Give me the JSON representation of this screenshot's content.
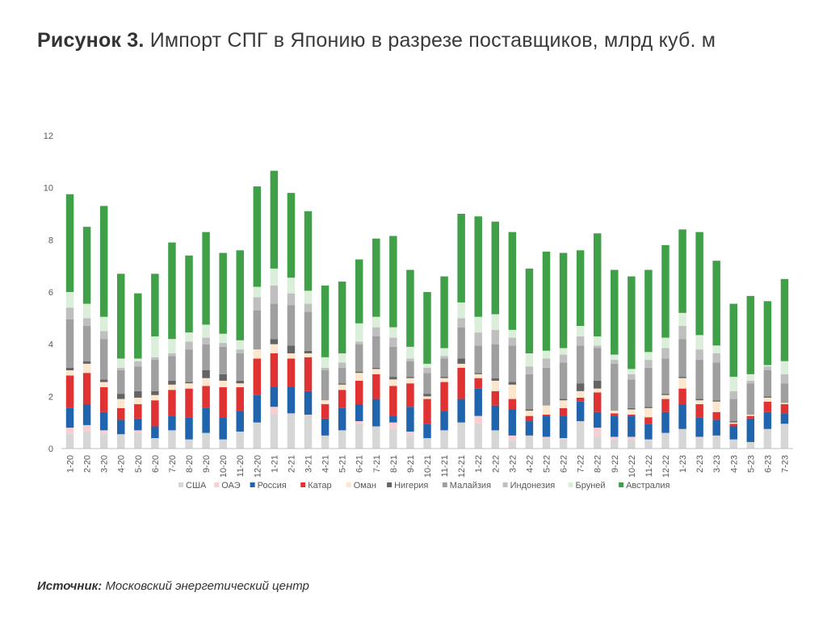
{
  "figure": {
    "label": "Рисунок 3.",
    "title": "Импорт СПГ в Японию в разрезе поставщиков, млрд куб. м"
  },
  "source": {
    "label": "Источник:",
    "text": "Московский энергетический центр"
  },
  "chart_data": {
    "type": "bar",
    "stacked": true,
    "title": "Импорт СПГ в Японию в разрезе поставщиков, млрд куб. м",
    "ylim": [
      0,
      12
    ],
    "yticks": [
      0,
      2,
      4,
      6,
      8,
      10,
      12
    ],
    "grid": false,
    "legend_position": "bottom",
    "categories": [
      "1-20",
      "2-20",
      "3-20",
      "4-20",
      "5-20",
      "6-20",
      "7-20",
      "8-20",
      "9-20",
      "10-20",
      "11-20",
      "12-20",
      "1-21",
      "2-21",
      "3-21",
      "4-21",
      "5-21",
      "6-21",
      "7-21",
      "8-21",
      "9-21",
      "10-21",
      "11-21",
      "12-21",
      "1-22",
      "2-22",
      "3-22",
      "4-22",
      "5-22",
      "6-22",
      "7-22",
      "8-22",
      "9-22",
      "10-22",
      "11-22",
      "12-22",
      "1-23",
      "2-23",
      "3-23",
      "4-23",
      "5-23",
      "6-23",
      "7-23"
    ],
    "series": [
      {
        "name": "США",
        "color": "#d6d6d6",
        "values": [
          0.55,
          0.65,
          0.55,
          0.55,
          0.6,
          0.4,
          0.7,
          0.35,
          0.6,
          0.35,
          0.65,
          1.0,
          1.3,
          1.35,
          1.3,
          0.5,
          0.7,
          0.95,
          0.85,
          0.75,
          0.5,
          0.4,
          0.7,
          1.0,
          0.95,
          0.7,
          0.3,
          0.5,
          0.4,
          0.35,
          1.05,
          0.45,
          0.35,
          0.35,
          0.3,
          0.6,
          0.75,
          0.4,
          0.5,
          0.35,
          0.25,
          0.75,
          0.95
        ]
      },
      {
        "name": "ОАЭ",
        "color": "#f5cfd3",
        "values": [
          0.25,
          0.25,
          0.15,
          0.0,
          0.1,
          0.0,
          0.0,
          0.0,
          0.0,
          0.0,
          0.0,
          0.0,
          0.3,
          0.0,
          0.0,
          0.0,
          0.0,
          0.1,
          0.0,
          0.25,
          0.15,
          0.0,
          0.0,
          0.0,
          0.3,
          0.0,
          0.2,
          0.0,
          0.05,
          0.05,
          0.0,
          0.35,
          0.1,
          0.1,
          0.05,
          0.0,
          0.0,
          0.05,
          0.0,
          0.0,
          0.0,
          0.0,
          0.0
        ]
      },
      {
        "name": "Россия",
        "color": "#1f64ad",
        "values": [
          0.75,
          0.8,
          0.7,
          0.55,
          0.45,
          0.45,
          0.55,
          0.85,
          0.95,
          0.85,
          0.8,
          1.05,
          0.75,
          1.0,
          0.9,
          0.65,
          0.85,
          0.65,
          1.05,
          0.25,
          0.95,
          0.55,
          0.75,
          0.9,
          1.05,
          0.95,
          1.0,
          0.55,
          0.8,
          0.85,
          0.75,
          0.6,
          0.8,
          0.8,
          0.6,
          0.8,
          0.95,
          0.75,
          0.6,
          0.5,
          0.9,
          0.65,
          0.4
        ]
      },
      {
        "name": "Катар",
        "color": "#e03232",
        "values": [
          1.25,
          1.2,
          0.95,
          0.45,
          0.55,
          1.0,
          1.0,
          1.1,
          0.85,
          1.15,
          0.9,
          1.4,
          1.3,
          1.1,
          1.3,
          0.55,
          0.7,
          0.9,
          0.95,
          1.15,
          0.9,
          0.95,
          1.1,
          1.2,
          0.4,
          0.55,
          0.4,
          0.2,
          0.05,
          0.3,
          0.15,
          0.75,
          0.1,
          0.05,
          0.25,
          0.5,
          0.6,
          0.5,
          0.3,
          0.1,
          0.1,
          0.4,
          0.35
        ]
      },
      {
        "name": "Оман",
        "color": "#fbe7cd",
        "values": [
          0.2,
          0.35,
          0.2,
          0.35,
          0.25,
          0.2,
          0.2,
          0.2,
          0.3,
          0.25,
          0.15,
          0.35,
          0.35,
          0.2,
          0.15,
          0.15,
          0.2,
          0.3,
          0.2,
          0.25,
          0.2,
          0.1,
          0.15,
          0.15,
          0.15,
          0.4,
          0.55,
          0.2,
          0.35,
          0.3,
          0.25,
          0.15,
          0.1,
          0.2,
          0.35,
          0.15,
          0.4,
          0.15,
          0.4,
          0.05,
          0.05,
          0.15,
          0.05
        ]
      },
      {
        "name": "Нигерия",
        "color": "#646464",
        "values": [
          0.1,
          0.1,
          0.1,
          0.2,
          0.25,
          0.15,
          0.15,
          0.05,
          0.3,
          0.25,
          0.1,
          0.0,
          0.2,
          0.3,
          0.1,
          0.0,
          0.05,
          0.05,
          0.05,
          0.1,
          0.05,
          0.1,
          0.05,
          0.2,
          0.05,
          0.1,
          0.1,
          0.05,
          0.0,
          0.05,
          0.3,
          0.3,
          0.0,
          0.05,
          0.05,
          0.05,
          0.05,
          0.05,
          0.05,
          0.05,
          0.0,
          0.05,
          0.0
        ]
      },
      {
        "name": "Малайзия",
        "color": "#9f9f9f",
        "values": [
          1.85,
          1.35,
          1.55,
          0.9,
          0.95,
          1.2,
          0.95,
          1.25,
          1.0,
          1.05,
          1.05,
          1.5,
          1.35,
          1.55,
          1.5,
          1.15,
          0.6,
          1.05,
          1.2,
          1.15,
          0.6,
          0.8,
          0.7,
          1.2,
          1.05,
          1.3,
          1.4,
          1.35,
          1.45,
          1.4,
          1.45,
          1.25,
          1.8,
          1.1,
          1.5,
          1.35,
          1.45,
          1.5,
          1.45,
          0.85,
          1.2,
          1.0,
          0.75
        ]
      },
      {
        "name": "Индонезия",
        "color": "#bfbfbf",
        "values": [
          0.45,
          0.3,
          0.3,
          0.1,
          0.2,
          0.1,
          0.1,
          0.3,
          0.25,
          0.15,
          0.15,
          0.5,
          0.7,
          0.45,
          0.3,
          0.1,
          0.2,
          0.1,
          0.35,
          0.35,
          0.1,
          0.2,
          0.1,
          0.35,
          0.5,
          0.55,
          0.3,
          0.3,
          0.35,
          0.3,
          0.35,
          0.1,
          0.15,
          0.2,
          0.3,
          0.4,
          0.5,
          0.4,
          0.35,
          0.3,
          0.1,
          0.15,
          0.35
        ]
      },
      {
        "name": "Бруней",
        "color": "#daeeda",
        "values": [
          0.6,
          0.55,
          0.55,
          0.35,
          0.1,
          0.8,
          0.55,
          0.35,
          0.5,
          0.35,
          0.35,
          0.4,
          0.65,
          0.6,
          0.5,
          0.4,
          0.35,
          0.7,
          0.4,
          0.4,
          0.45,
          0.15,
          0.3,
          0.6,
          0.6,
          0.6,
          0.3,
          0.5,
          0.3,
          0.25,
          0.4,
          0.35,
          0.2,
          0.2,
          0.3,
          0.4,
          0.5,
          0.55,
          0.3,
          0.55,
          0.25,
          0.05,
          0.5
        ]
      },
      {
        "name": "Австралия",
        "color": "#3fa047",
        "values": [
          3.75,
          2.95,
          4.25,
          3.25,
          2.5,
          2.4,
          3.7,
          2.95,
          3.55,
          3.1,
          3.45,
          3.85,
          3.75,
          3.25,
          3.05,
          2.75,
          2.75,
          2.45,
          3.0,
          3.5,
          2.95,
          2.75,
          2.75,
          3.4,
          3.85,
          3.55,
          3.75,
          3.25,
          3.8,
          3.65,
          2.9,
          3.95,
          3.25,
          3.55,
          3.15,
          3.55,
          3.2,
          3.95,
          3.25,
          2.8,
          3.0,
          2.45,
          3.15
        ]
      }
    ]
  }
}
